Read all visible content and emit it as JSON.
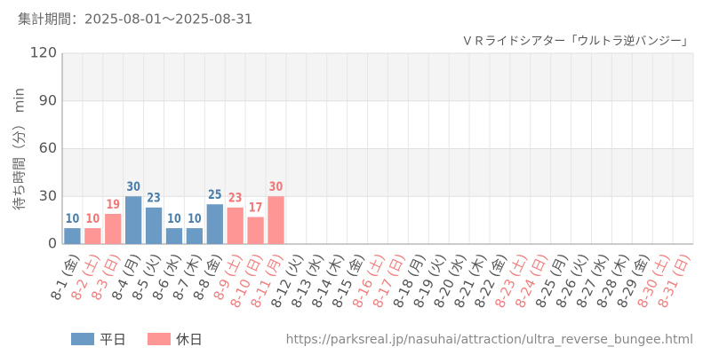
{
  "chart_data": {
    "type": "bar",
    "title": "集計期間：2025-08-01～2025-08-31",
    "subtitle": "ＶＲライドシアター「ウルトラ逆バンジー」",
    "y_label": "待ち時間（分） min",
    "source": "https://parksreal.jp/nasuhai/attraction/ultra_reverse_bungee.html",
    "categories": [
      "8-1 (金)",
      "8-2 (土)",
      "8-3 (日)",
      "8-4 (月)",
      "8-5 (火)",
      "8-6 (水)",
      "8-7 (木)",
      "8-8 (金)",
      "8-9 (土)",
      "8-10 (日)",
      "8-11 (月)",
      "8-12 (火)",
      "8-13 (水)",
      "8-14 (木)",
      "8-15 (金)",
      "8-16 (土)",
      "8-17 (日)",
      "8-18 (月)",
      "8-19 (火)",
      "8-20 (水)",
      "8-21 (木)",
      "8-22 (金)",
      "8-23 (土)",
      "8-24 (日)",
      "8-25 (月)",
      "8-26 (火)",
      "8-27 (水)",
      "8-28 (木)",
      "8-29 (金)",
      "8-30 (土)",
      "8-31 (日)"
    ],
    "category_colors": [
      "#555",
      "#f08080",
      "#f08080",
      "#555",
      "#555",
      "#555",
      "#555",
      "#555",
      "#f08080",
      "#f08080",
      "#f08080",
      "#555",
      "#555",
      "#555",
      "#555",
      "#f08080",
      "#f08080",
      "#555",
      "#555",
      "#555",
      "#555",
      "#555",
      "#f08080",
      "#f08080",
      "#555",
      "#555",
      "#555",
      "#555",
      "#555",
      "#f08080",
      "#f08080"
    ],
    "series": [
      {
        "name": "平日",
        "color": "#6b9ac4",
        "label_color": "#4a7fab",
        "values": [
          10,
          null,
          null,
          30,
          23,
          10,
          10,
          25,
          null,
          null,
          null,
          null,
          null,
          null,
          null,
          null,
          null,
          null,
          null,
          null,
          null,
          null,
          null,
          null,
          null,
          null,
          null,
          null,
          null,
          null,
          null
        ]
      },
      {
        "name": "休日",
        "color": "#ff9696",
        "label_color": "#f07878",
        "values": [
          null,
          10,
          19,
          null,
          null,
          null,
          null,
          null,
          23,
          17,
          30,
          null,
          null,
          null,
          null,
          null,
          null,
          null,
          null,
          null,
          null,
          null,
          null,
          null,
          null,
          null,
          null,
          null,
          null,
          null,
          null
        ]
      }
    ],
    "ylim": [
      0,
      120
    ],
    "yticks": [
      0,
      30,
      60,
      90,
      120
    ],
    "grid": true
  }
}
